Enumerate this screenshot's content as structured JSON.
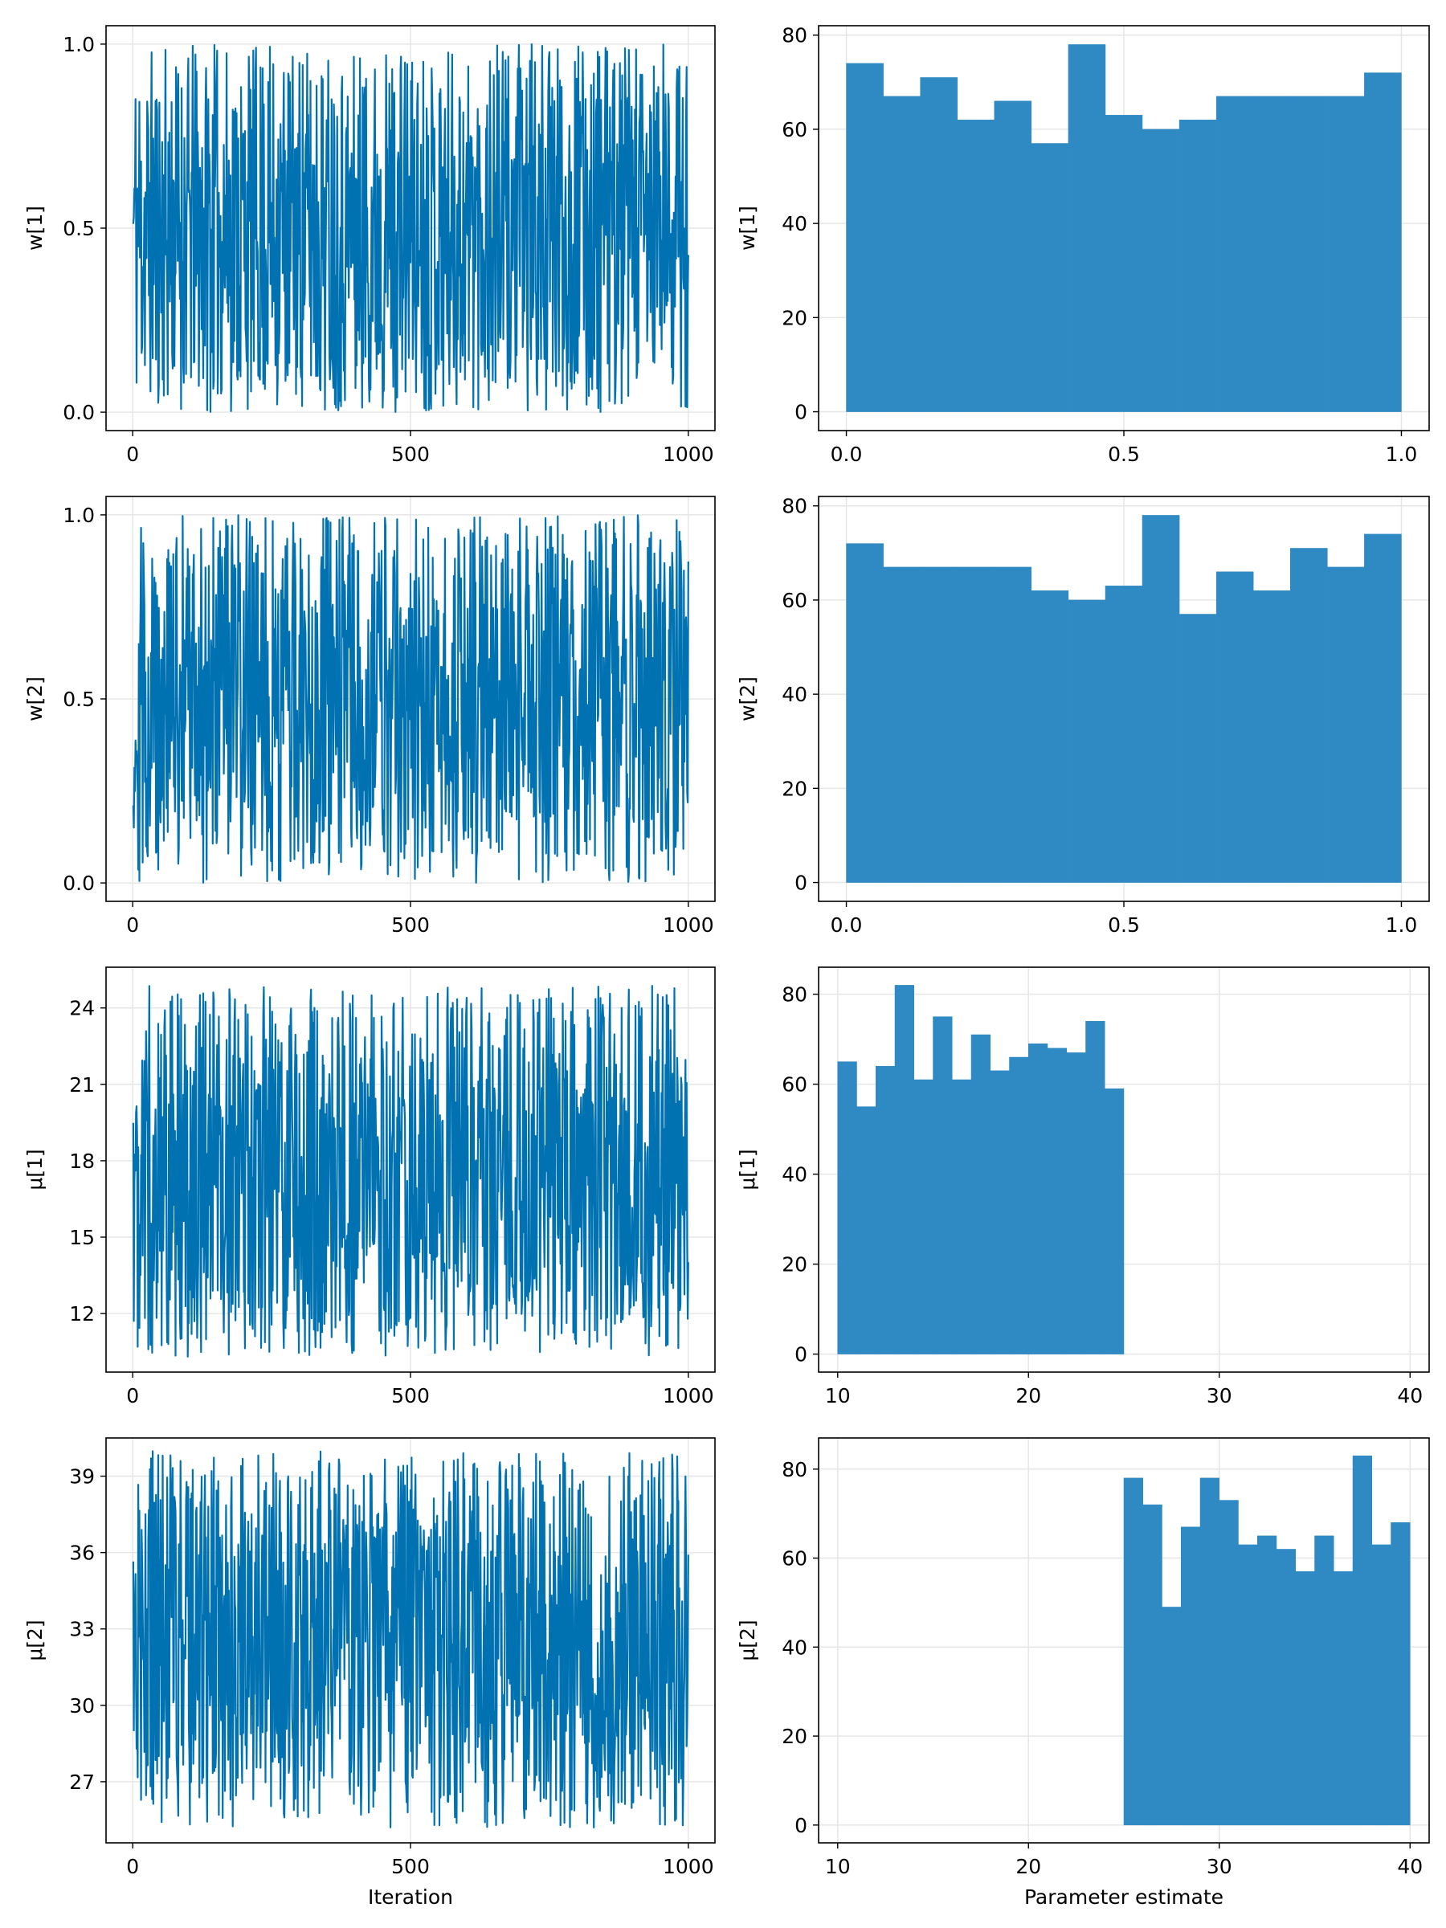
{
  "theme": {
    "trace_color": "#0072b2",
    "bar_color": "#2f8ac4",
    "grid_color": "#e6e6e6"
  },
  "chart_data": [
    {
      "id": "trace-w1",
      "type": "line",
      "xlabel": "",
      "ylabel": "w[1]",
      "xlim": [
        -48,
        1048
      ],
      "ylim": [
        -0.05,
        1.05
      ],
      "xticks": [
        0,
        500,
        1000
      ],
      "xtick_labels": [
        "0",
        "500",
        "1000"
      ],
      "yticks": [
        0.0,
        0.5,
        1.0
      ],
      "ytick_labels": [
        "0.0",
        "0.5",
        "1.0"
      ],
      "series": [
        {
          "n": 1000,
          "min": 0.0,
          "max": 1.0,
          "seed": 11
        }
      ]
    },
    {
      "id": "hist-w1",
      "type": "bar",
      "xlabel": "",
      "ylabel": "w[1]",
      "xlim": [
        -0.05,
        1.05
      ],
      "ylim": [
        -4,
        82
      ],
      "xticks": [
        0.0,
        0.5,
        1.0
      ],
      "xtick_labels": [
        "0.0",
        "0.5",
        "1.0"
      ],
      "yticks": [
        0,
        20,
        40,
        60,
        80
      ],
      "ytick_labels": [
        "0",
        "20",
        "40",
        "60",
        "80"
      ],
      "bin_edges": [
        0.0,
        0.0667,
        0.1333,
        0.2,
        0.2667,
        0.3333,
        0.4,
        0.4667,
        0.5333,
        0.6,
        0.6667,
        0.7333,
        0.8,
        0.8667,
        0.9333,
        1.0
      ],
      "values": [
        74,
        67,
        71,
        62,
        66,
        57,
        78,
        63,
        60,
        62,
        67,
        67,
        67,
        67,
        72
      ]
    },
    {
      "id": "trace-w2",
      "type": "line",
      "xlabel": "",
      "ylabel": "w[2]",
      "xlim": [
        -48,
        1048
      ],
      "ylim": [
        -0.05,
        1.05
      ],
      "xticks": [
        0,
        500,
        1000
      ],
      "xtick_labels": [
        "0",
        "500",
        "1000"
      ],
      "yticks": [
        0.0,
        0.5,
        1.0
      ],
      "ytick_labels": [
        "0.0",
        "0.5",
        "1.0"
      ],
      "series": [
        {
          "n": 1000,
          "min": 0.0,
          "max": 1.0,
          "seed": 29
        }
      ]
    },
    {
      "id": "hist-w2",
      "type": "bar",
      "xlabel": "",
      "ylabel": "w[2]",
      "xlim": [
        -0.05,
        1.05
      ],
      "ylim": [
        -4,
        82
      ],
      "xticks": [
        0.0,
        0.5,
        1.0
      ],
      "xtick_labels": [
        "0.0",
        "0.5",
        "1.0"
      ],
      "yticks": [
        0,
        20,
        40,
        60,
        80
      ],
      "ytick_labels": [
        "0",
        "20",
        "40",
        "60",
        "80"
      ],
      "bin_edges": [
        0.0,
        0.0667,
        0.1333,
        0.2,
        0.2667,
        0.3333,
        0.4,
        0.4667,
        0.5333,
        0.6,
        0.6667,
        0.7333,
        0.8,
        0.8667,
        0.9333,
        1.0
      ],
      "values": [
        72,
        67,
        67,
        67,
        67,
        62,
        60,
        63,
        78,
        57,
        66,
        62,
        71,
        67,
        74
      ]
    },
    {
      "id": "trace-mu1",
      "type": "line",
      "xlabel": "",
      "ylabel": "μ[1]",
      "xlim": [
        -48,
        1048
      ],
      "ylim": [
        9.7,
        25.6
      ],
      "xticks": [
        0,
        500,
        1000
      ],
      "xtick_labels": [
        "0",
        "500",
        "1000"
      ],
      "yticks": [
        12,
        15,
        18,
        21,
        24
      ],
      "ytick_labels": [
        "12",
        "15",
        "18",
        "21",
        "24"
      ],
      "series": [
        {
          "n": 1000,
          "min": 10.3,
          "max": 24.9,
          "seed": 47
        }
      ]
    },
    {
      "id": "hist-mu1",
      "type": "bar",
      "xlabel": "",
      "ylabel": "μ[1]",
      "xlim": [
        9,
        41
      ],
      "ylim": [
        -4,
        86
      ],
      "xticks": [
        10,
        20,
        30,
        40
      ],
      "xtick_labels": [
        "10",
        "20",
        "30",
        "40"
      ],
      "yticks": [
        0,
        20,
        40,
        60,
        80
      ],
      "ytick_labels": [
        "0",
        "20",
        "40",
        "60",
        "80"
      ],
      "bin_edges": [
        10,
        11,
        12,
        13,
        14,
        15,
        16,
        17,
        18,
        19,
        20,
        21,
        22,
        23,
        24,
        25
      ],
      "values": [
        65,
        55,
        64,
        82,
        61,
        75,
        61,
        71,
        63,
        66,
        69,
        68,
        67,
        74,
        59
      ]
    },
    {
      "id": "trace-mu2",
      "type": "line",
      "xlabel": "Iteration",
      "ylabel": "μ[2]",
      "xlim": [
        -48,
        1048
      ],
      "ylim": [
        24.6,
        40.5
      ],
      "xticks": [
        0,
        500,
        1000
      ],
      "xtick_labels": [
        "0",
        "500",
        "1000"
      ],
      "yticks": [
        27,
        30,
        33,
        36,
        39
      ],
      "ytick_labels": [
        "27",
        "30",
        "33",
        "36",
        "39"
      ],
      "series": [
        {
          "n": 1000,
          "min": 25.2,
          "max": 40.0,
          "seed": 83
        }
      ]
    },
    {
      "id": "hist-mu2",
      "type": "bar",
      "xlabel": "Parameter estimate",
      "ylabel": "μ[2]",
      "xlim": [
        9,
        41
      ],
      "ylim": [
        -4,
        87
      ],
      "xticks": [
        10,
        20,
        30,
        40
      ],
      "xtick_labels": [
        "10",
        "20",
        "30",
        "40"
      ],
      "yticks": [
        0,
        20,
        40,
        60,
        80
      ],
      "ytick_labels": [
        "0",
        "20",
        "40",
        "60",
        "80"
      ],
      "bin_edges": [
        25,
        26,
        27,
        28,
        29,
        30,
        31,
        32,
        33,
        34,
        35,
        36,
        37,
        38,
        39,
        40
      ],
      "values": [
        78,
        72,
        49,
        67,
        78,
        73,
        63,
        65,
        62,
        57,
        65,
        57,
        83,
        63,
        68
      ]
    }
  ]
}
